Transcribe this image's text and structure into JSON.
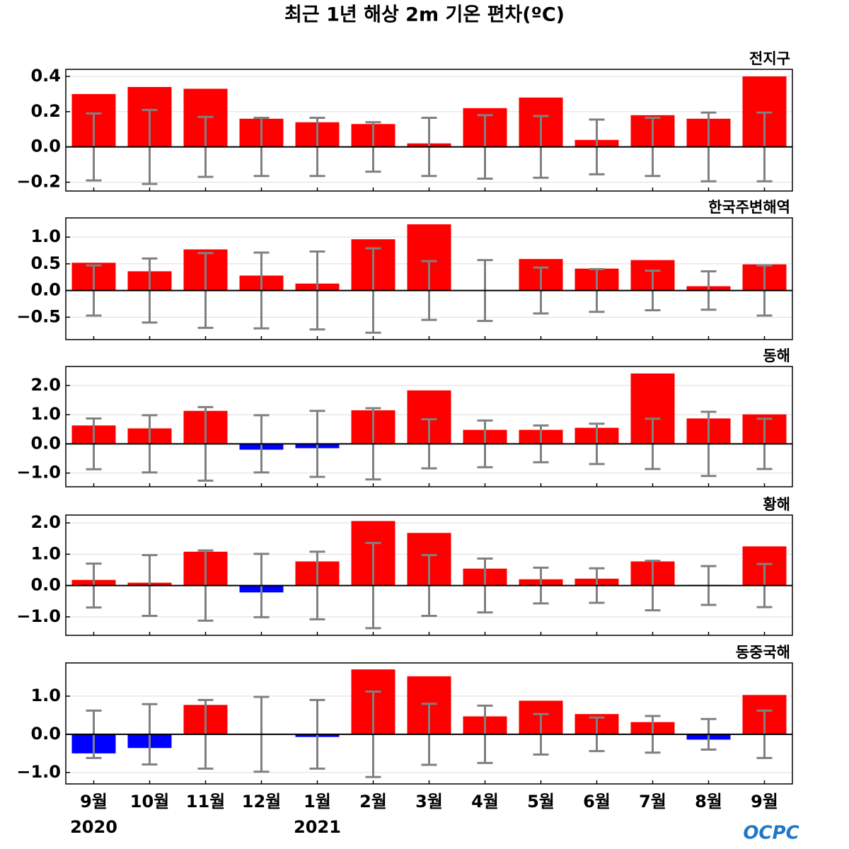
{
  "title": "최근 1년 해상 2m 기온 편차(ºC)",
  "categories": [
    "9월",
    "10월",
    "11월",
    "12월",
    "1월",
    "2월",
    "3월",
    "4월",
    "5월",
    "6월",
    "7월",
    "8월",
    "9월"
  ],
  "years": [
    "2020",
    null,
    null,
    null,
    "2021",
    null,
    null,
    null,
    null,
    null,
    null,
    null,
    null
  ],
  "colors": {
    "positive": "#ff0000",
    "negative": "#0000ff",
    "error": "#808080"
  },
  "logo": "OCPC",
  "chart_data": [
    {
      "type": "bar",
      "title": "전지구",
      "values": [
        0.3,
        0.34,
        0.33,
        0.16,
        0.14,
        0.13,
        0.02,
        0.22,
        0.28,
        0.04,
        0.18,
        0.16,
        0.4
      ],
      "errors": [
        0.19,
        0.21,
        0.17,
        0.165,
        0.165,
        0.14,
        0.165,
        0.18,
        0.175,
        0.155,
        0.165,
        0.195,
        0.195
      ],
      "ylim": [
        -0.25,
        0.44
      ],
      "yticks": [
        {
          "value": -0.2,
          "label": "−0.2"
        },
        {
          "value": 0,
          "label": "0.0"
        },
        0.2,
        0.4
      ]
    },
    {
      "type": "bar",
      "title": "한국주변해역",
      "values": [
        0.52,
        0.36,
        0.77,
        0.28,
        0.13,
        0.96,
        1.24,
        -0.01,
        0.59,
        0.41,
        0.57,
        0.08,
        0.49
      ],
      "errors": [
        0.47,
        0.6,
        0.7,
        0.71,
        0.73,
        0.79,
        0.55,
        0.57,
        0.43,
        0.4,
        0.37,
        0.36,
        0.47
      ],
      "ylim": [
        -0.92,
        1.36
      ],
      "yticks": [
        {
          "value": -0.5,
          "label": "−0.5"
        },
        {
          "value": 0,
          "label": "0.0"
        },
        0.5,
        {
          "value": 1,
          "label": "1.0"
        }
      ]
    },
    {
      "type": "bar",
      "title": "동해",
      "values": [
        0.63,
        0.53,
        1.13,
        -0.2,
        -0.15,
        1.15,
        1.83,
        0.48,
        0.48,
        0.55,
        2.41,
        0.87,
        1.01
      ],
      "errors": [
        0.87,
        0.98,
        1.26,
        0.98,
        1.13,
        1.22,
        0.84,
        0.8,
        0.63,
        0.69,
        0.86,
        1.1,
        0.86
      ],
      "ylim": [
        -1.47,
        2.65
      ],
      "yticks": [
        {
          "value": -1,
          "label": "−1.0"
        },
        {
          "value": 0,
          "label": "0.0"
        },
        {
          "value": 1,
          "label": "1.0"
        },
        {
          "value": 2,
          "label": "2.0"
        }
      ]
    },
    {
      "type": "bar",
      "title": "황해",
      "values": [
        0.18,
        0.09,
        1.08,
        -0.22,
        0.77,
        2.06,
        1.68,
        0.54,
        0.2,
        0.22,
        0.77,
        0.02,
        1.25
      ],
      "errors": [
        0.7,
        0.97,
        1.12,
        1.01,
        1.08,
        1.36,
        0.97,
        0.86,
        0.57,
        0.55,
        0.79,
        0.62,
        0.69
      ],
      "ylim": [
        -1.59,
        2.25
      ],
      "yticks": [
        {
          "value": -1,
          "label": "−1.0"
        },
        {
          "value": 0,
          "label": "0.0"
        },
        {
          "value": 1,
          "label": "1.0"
        },
        {
          "value": 2,
          "label": "2.0"
        }
      ]
    },
    {
      "type": "bar",
      "title": "동중국해",
      "values": [
        -0.5,
        -0.36,
        0.77,
        0.0,
        -0.07,
        1.7,
        1.52,
        0.47,
        0.88,
        0.53,
        0.32,
        -0.14,
        1.03
      ],
      "errors": [
        0.62,
        0.79,
        0.9,
        0.98,
        0.9,
        1.12,
        0.8,
        0.75,
        0.53,
        0.44,
        0.48,
        0.4,
        0.62
      ],
      "ylim": [
        -1.3,
        1.87
      ],
      "yticks": [
        {
          "value": -1,
          "label": "−1.0"
        },
        {
          "value": 0,
          "label": "0.0"
        },
        {
          "value": 1,
          "label": "1.0"
        }
      ]
    }
  ]
}
